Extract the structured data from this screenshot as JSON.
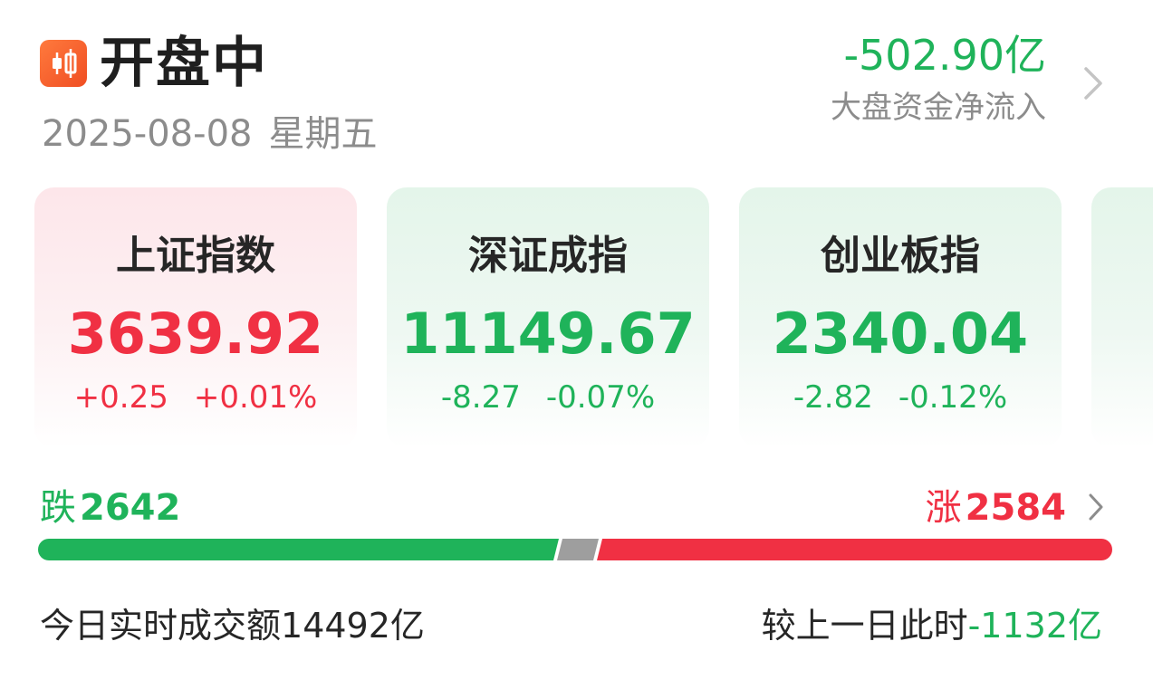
{
  "header": {
    "title": "开盘中",
    "date": "2025-08-08",
    "weekday": "星期五",
    "flow_value": "-502.90亿",
    "flow_label": "大盘资金净流入",
    "logo_icon": "candlestick-chart-icon",
    "chevron_icon": "chevron-right-icon"
  },
  "indices": [
    {
      "name": "上证指数",
      "value": "3639.92",
      "change": "+0.25",
      "change_pct": "+0.01%",
      "trend": "up"
    },
    {
      "name": "深证成指",
      "value": "11149.67",
      "change": "-8.27",
      "change_pct": "-0.07%",
      "trend": "down"
    },
    {
      "name": "创业板指",
      "value": "2340.04",
      "change": "-2.82",
      "change_pct": "-0.12%",
      "trend": "down"
    }
  ],
  "breadth": {
    "fall_label": "跌",
    "fall_count": "2642",
    "rise_label": "涨",
    "rise_count": "2584",
    "flat_share": 0.034,
    "colors": {
      "fall": "#1fb35a",
      "flat": "#9e9e9e",
      "rise": "#f03043"
    }
  },
  "turnover": {
    "label": "今日实时成交额",
    "value": "14492亿",
    "compare_label": "较上一日此时",
    "compare_value": "-1132亿"
  },
  "colors": {
    "up": "#f03043",
    "down": "#1fb35a",
    "logo": "#f04e23"
  }
}
